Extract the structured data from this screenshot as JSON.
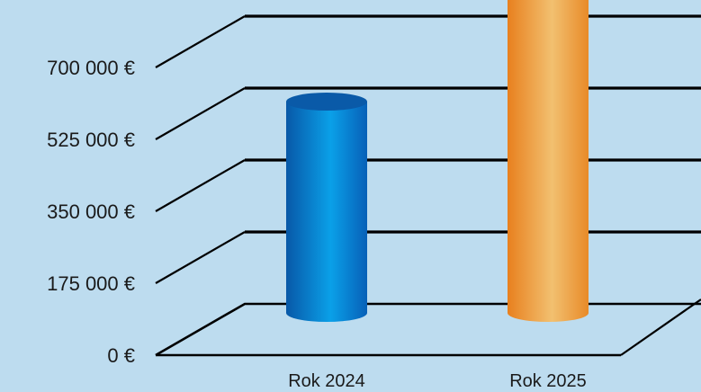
{
  "chart_data": {
    "type": "bar",
    "categories": [
      "Rok 2024",
      "Rok 2025"
    ],
    "series": [
      {
        "values": [
          514000,
          793000
        ]
      }
    ],
    "colors": [
      "#0a7fd0",
      "#f0a040"
    ],
    "yticks": [
      "0 €",
      "175 000 €",
      "350 000 €",
      "525 000 €",
      "700 000 €"
    ],
    "ylim": [
      0,
      875000
    ],
    "title": "",
    "xlabel": "",
    "ylabel": "",
    "grid": true,
    "legend": "none"
  }
}
